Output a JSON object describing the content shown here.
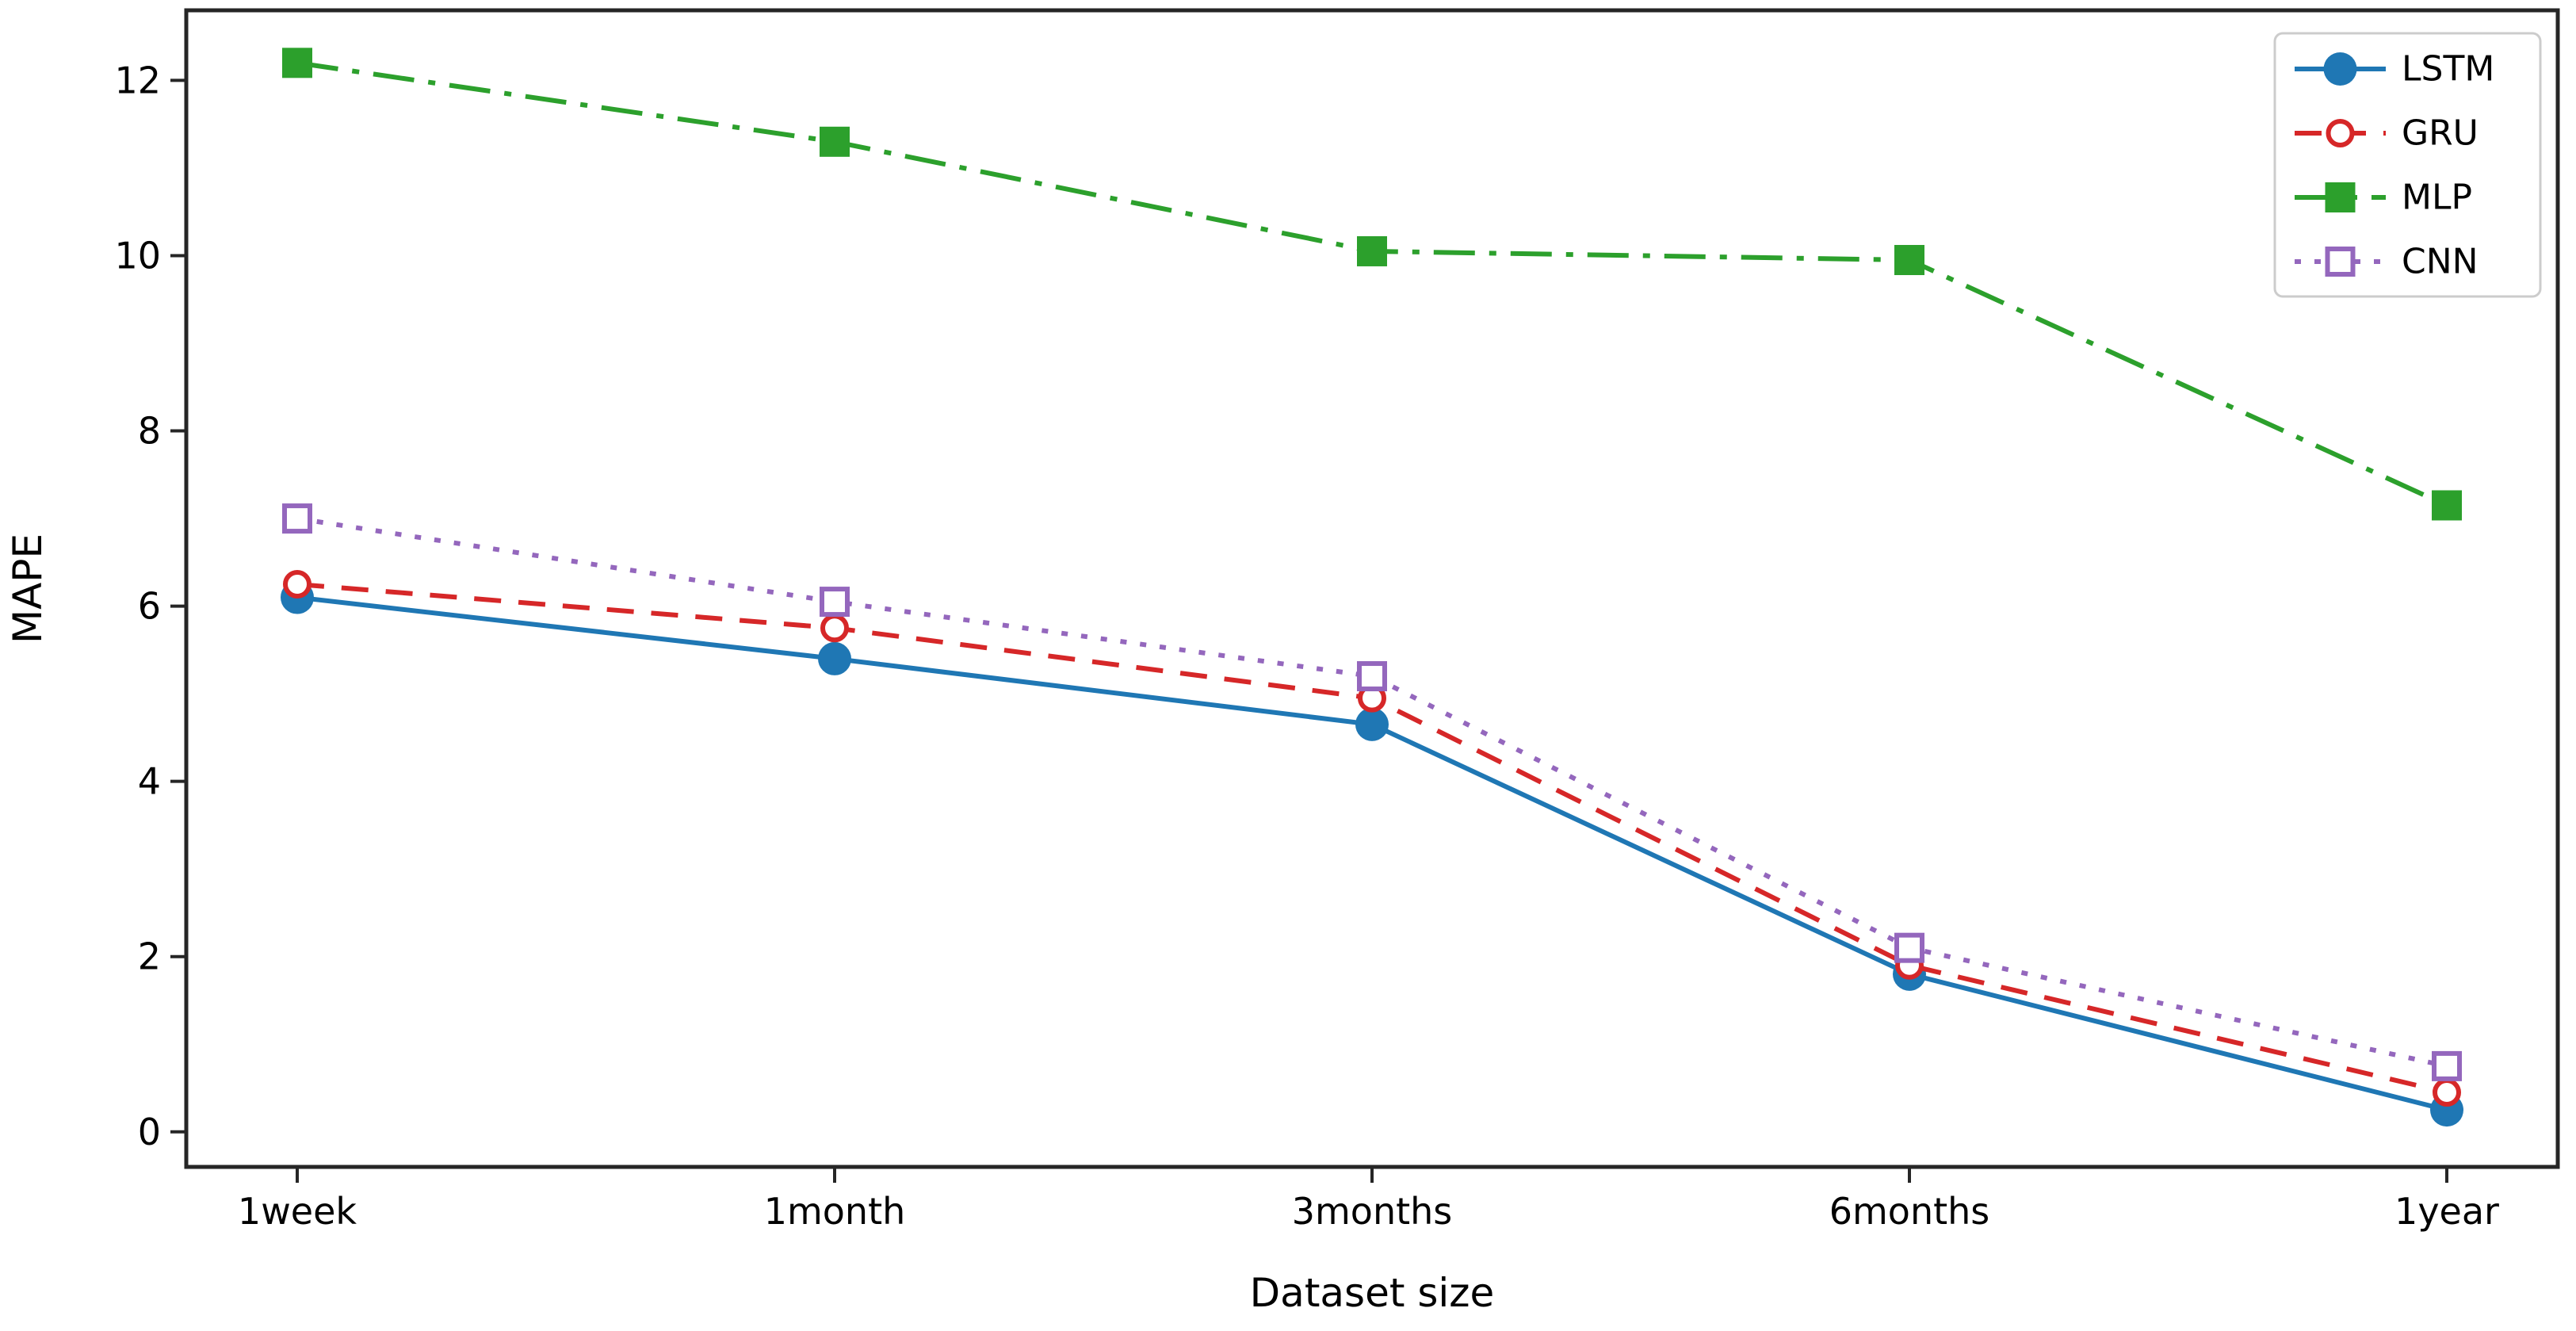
{
  "chart_data": {
    "type": "line",
    "title": "",
    "xlabel": "Dataset size",
    "ylabel": "MAPE",
    "categories": [
      "1week",
      "1month",
      "3months",
      "6months",
      "1year"
    ],
    "series": [
      {
        "name": "LSTM",
        "color": "#1f77b4",
        "linestyle": "solid",
        "marker": "circle-filled",
        "values": [
          6.1,
          5.4,
          4.65,
          1.8,
          0.25
        ]
      },
      {
        "name": "GRU",
        "color": "#d62728",
        "linestyle": "dashed",
        "marker": "circle-open",
        "values": [
          6.25,
          5.75,
          4.95,
          1.9,
          0.45
        ]
      },
      {
        "name": "MLP",
        "color": "#2ca02c",
        "linestyle": "dashdot",
        "marker": "square-filled",
        "values": [
          12.2,
          11.3,
          10.05,
          9.95,
          7.15
        ]
      },
      {
        "name": "CNN",
        "color": "#9467bd",
        "linestyle": "dotted",
        "marker": "square-open",
        "values": [
          7.0,
          6.05,
          5.2,
          2.1,
          0.75
        ]
      }
    ],
    "yticks": [
      0,
      2,
      4,
      6,
      8,
      10,
      12
    ],
    "ylim": [
      -0.4,
      12.8
    ],
    "grid": false,
    "legend_position": "upper right",
    "axis_color": "#262626",
    "legend_border_color": "#cccccc",
    "background_color": "#ffffff"
  }
}
